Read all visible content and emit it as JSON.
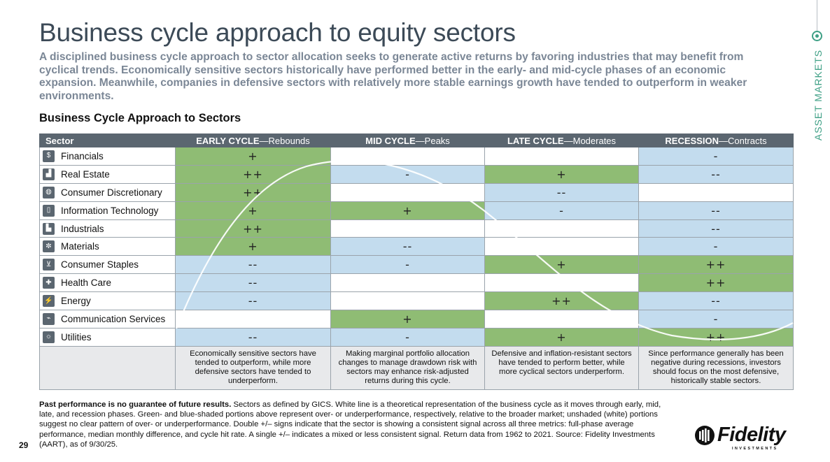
{
  "page": {
    "title": "Business cycle approach to equity sectors",
    "subtitle": "A disciplined business cycle approach to sector allocation seeks to generate active returns by favoring industries that may benefit from cyclical trends. Economically sensitive sectors historically have performed better in the early- and mid-cycle phases of an economic expansion. Meanwhile, companies in defensive sectors with relatively more stable earnings growth have tended to outperform in weaker environments.",
    "section_heading": "Business Cycle Approach to Sectors",
    "sidebar_label": "ASSET MARKETS",
    "page_number": "29"
  },
  "colors": {
    "green": "#8fbc74",
    "blue": "#c3dcee",
    "white": "#ffffff",
    "header": "#5b6670",
    "accent": "#3fa086"
  },
  "table": {
    "sector_header": "Sector",
    "phases": [
      {
        "name": "EARLY CYCLE",
        "sep": "—",
        "desc": "Rebounds"
      },
      {
        "name": "MID CYCLE",
        "sep": "—",
        "desc": "Peaks"
      },
      {
        "name": "LATE CYCLE",
        "sep": "—",
        "desc": "Moderates"
      },
      {
        "name": "RECESSION",
        "sep": "—",
        "desc": "Contracts"
      }
    ],
    "rows": [
      {
        "sector": "Financials",
        "icon": "bank-note-icon",
        "glyph": "$",
        "cells": [
          {
            "mark": "+",
            "shade": "g"
          },
          {
            "mark": "",
            "shade": "w"
          },
          {
            "mark": "",
            "shade": "w"
          },
          {
            "mark": "-",
            "shade": "b"
          }
        ]
      },
      {
        "sector": "Real Estate",
        "icon": "buildings-icon",
        "glyph": "▟",
        "cells": [
          {
            "mark": "++",
            "shade": "g"
          },
          {
            "mark": "-",
            "shade": "b"
          },
          {
            "mark": "+",
            "shade": "g"
          },
          {
            "mark": "--",
            "shade": "b"
          }
        ]
      },
      {
        "sector": "Consumer Discretionary",
        "icon": "shopping-bag-icon",
        "glyph": "◍",
        "cells": [
          {
            "mark": "++",
            "shade": "g"
          },
          {
            "mark": "",
            "shade": "w"
          },
          {
            "mark": "--",
            "shade": "b"
          },
          {
            "mark": "",
            "shade": "w"
          }
        ]
      },
      {
        "sector": "Information Technology",
        "icon": "mobile-device-icon",
        "glyph": "▯",
        "cells": [
          {
            "mark": "+",
            "shade": "g"
          },
          {
            "mark": "+",
            "shade": "g"
          },
          {
            "mark": "-",
            "shade": "b"
          },
          {
            "mark": "--",
            "shade": "b"
          }
        ]
      },
      {
        "sector": "Industrials",
        "icon": "factory-icon",
        "glyph": "▙",
        "cells": [
          {
            "mark": "++",
            "shade": "g"
          },
          {
            "mark": "",
            "shade": "w"
          },
          {
            "mark": "",
            "shade": "w"
          },
          {
            "mark": "--",
            "shade": "b"
          }
        ]
      },
      {
        "sector": "Materials",
        "icon": "materials-icon",
        "glyph": "✼",
        "cells": [
          {
            "mark": "+",
            "shade": "g"
          },
          {
            "mark": "--",
            "shade": "b"
          },
          {
            "mark": "",
            "shade": "w"
          },
          {
            "mark": "-",
            "shade": "b"
          }
        ]
      },
      {
        "sector": "Consumer Staples",
        "icon": "shopping-cart-icon",
        "glyph": "⊻",
        "cells": [
          {
            "mark": "--",
            "shade": "b"
          },
          {
            "mark": "-",
            "shade": "b"
          },
          {
            "mark": "+",
            "shade": "g"
          },
          {
            "mark": "++",
            "shade": "g"
          }
        ]
      },
      {
        "sector": "Health Care",
        "icon": "health-care-icon",
        "glyph": "✚",
        "cells": [
          {
            "mark": "--",
            "shade": "b"
          },
          {
            "mark": "",
            "shade": "w"
          },
          {
            "mark": "",
            "shade": "w"
          },
          {
            "mark": "++",
            "shade": "g"
          }
        ]
      },
      {
        "sector": "Energy",
        "icon": "oil-rig-icon",
        "glyph": "⚡",
        "cells": [
          {
            "mark": "--",
            "shade": "b"
          },
          {
            "mark": "",
            "shade": "w"
          },
          {
            "mark": "++",
            "shade": "g"
          },
          {
            "mark": "--",
            "shade": "b"
          }
        ]
      },
      {
        "sector": "Communication Services",
        "icon": "antenna-icon",
        "glyph": "⌁",
        "cells": [
          {
            "mark": "",
            "shade": "w"
          },
          {
            "mark": "+",
            "shade": "g"
          },
          {
            "mark": "",
            "shade": "w"
          },
          {
            "mark": "-",
            "shade": "b"
          }
        ]
      },
      {
        "sector": "Utilities",
        "icon": "light-bulb-icon",
        "glyph": "☼",
        "cells": [
          {
            "mark": "--",
            "shade": "b"
          },
          {
            "mark": "-",
            "shade": "b"
          },
          {
            "mark": "+",
            "shade": "g"
          },
          {
            "mark": "++",
            "shade": "g"
          }
        ]
      }
    ],
    "footer_notes": [
      "Economically sensitive sectors have tended to outperform, while more defensive sectors have tended to underperform.",
      "Making marginal portfolio allocation changes to manage drawdown risk with sectors may enhance risk-adjusted returns during this cycle.",
      "Defensive and inflation-resistant sectors have tended to perform better, while more cyclical sectors underperform.",
      "Since performance generally has been negative during recessions, investors should focus on the most defensive, historically stable sectors."
    ]
  },
  "footnote": {
    "bold": "Past performance is no guarantee of future results.",
    "text": " Sectors as defined by GICS. White line is a theoretical representation of the business cycle as it moves through early, mid, late, and recession phases. Green- and blue-shaded portions above represent over- or underperformance, respectively, relative to the broader market; unshaded (white) portions suggest no clear pattern of over- or underperformance. Double +/– signs indicate that the sector is showing a consistent signal across all three metrics: full-phase average performance, median monthly difference, and cycle hit rate. A single +/– indicates a mixed or less consistent signal. Return data from 1962 to 2021. Source: Fidelity Investments (AART), as of 9/30/25."
  },
  "logo": {
    "word": "Fidelity",
    "sub": "INVESTMENTS"
  }
}
